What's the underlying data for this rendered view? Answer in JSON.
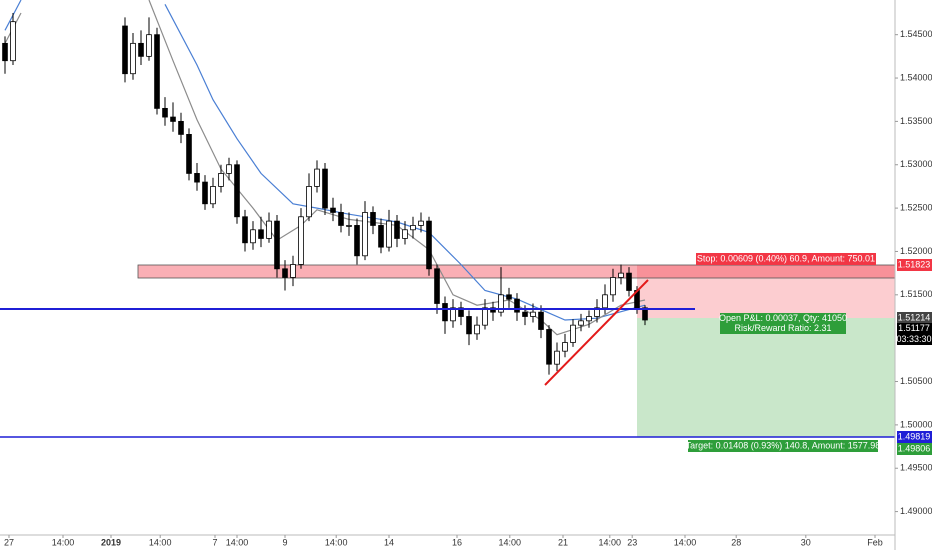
{
  "chart_data": {
    "type": "candlestick",
    "xlim": [
      -0.625,
      111.25
    ],
    "ylim": [
      1.4873,
      1.549
    ],
    "yticks": [
      {
        "value": 1.545,
        "label": "1.54500"
      },
      {
        "value": 1.54,
        "label": "1.54000"
      },
      {
        "value": 1.535,
        "label": "1.53500"
      },
      {
        "value": 1.53,
        "label": "1.53000"
      },
      {
        "value": 1.525,
        "label": "1.52500"
      },
      {
        "value": 1.52,
        "label": "1.52000"
      },
      {
        "value": 1.515,
        "label": "1.51500"
      },
      {
        "value": 1.505,
        "label": "1.50500"
      },
      {
        "value": 1.5,
        "label": "1.50000"
      },
      {
        "value": 1.495,
        "label": "1.49500"
      },
      {
        "value": 1.49,
        "label": "1.49000"
      }
    ],
    "xticks": [
      {
        "value": 0.5,
        "label": "27"
      },
      {
        "value": 7.25,
        "label": "14:00"
      },
      {
        "value": 13.25,
        "label": "2019"
      },
      {
        "value": 19.4,
        "label": "14:00"
      },
      {
        "value": 26.25,
        "label": "7"
      },
      {
        "value": 29,
        "label": "14:00"
      },
      {
        "value": 35,
        "label": "9"
      },
      {
        "value": 41.4,
        "label": "14:00"
      },
      {
        "value": 48,
        "label": "14"
      },
      {
        "value": 56.5,
        "label": "16"
      },
      {
        "value": 63.1,
        "label": "14:00"
      },
      {
        "value": 69.75,
        "label": "21"
      },
      {
        "value": 75.6,
        "label": "14:00"
      },
      {
        "value": 78.4,
        "label": "23"
      },
      {
        "value": 85,
        "label": "14:00"
      },
      {
        "value": 91.4,
        "label": "28"
      },
      {
        "value": 100.1,
        "label": "30"
      },
      {
        "value": 108.75,
        "label": "Feb"
      }
    ],
    "up_color": "#ffffff",
    "down_color": "#000000",
    "x": [
      0,
      1,
      15,
      16,
      17,
      18,
      19,
      20,
      21,
      22,
      23,
      24,
      25,
      26,
      27,
      28,
      29,
      30,
      31,
      32,
      33,
      34,
      35,
      36,
      37,
      38,
      39,
      40,
      41,
      42,
      43,
      44,
      45,
      46,
      47,
      48,
      49,
      50,
      51,
      52,
      53,
      54,
      55,
      56,
      57,
      58,
      59,
      60,
      61,
      62,
      63,
      64,
      65,
      66,
      67,
      68,
      69,
      70,
      71,
      72,
      73,
      74,
      75,
      76,
      77,
      78,
      79,
      80
    ],
    "open": [
      1.544,
      1.542,
      1.546,
      1.5405,
      1.544,
      1.5425,
      1.545,
      1.5365,
      1.5355,
      1.535,
      1.5335,
      1.529,
      1.528,
      1.5255,
      1.5275,
      1.529,
      1.53,
      1.524,
      1.521,
      1.5225,
      1.5215,
      1.5235,
      1.518,
      1.517,
      1.5185,
      1.524,
      1.5275,
      1.5295,
      1.525,
      1.5245,
      1.523,
      1.523,
      1.5195,
      1.5245,
      1.523,
      1.5205,
      1.5235,
      1.5215,
      1.5225,
      1.523,
      1.5235,
      1.518,
      1.514,
      1.512,
      1.5135,
      1.5125,
      1.5105,
      1.5115,
      1.5135,
      1.513,
      1.515,
      1.5145,
      1.513,
      1.5125,
      1.513,
      1.511,
      1.507,
      1.5085,
      1.5095,
      1.5115,
      1.512,
      1.5125,
      1.5135,
      1.515,
      1.517,
      1.5175,
      1.5155,
      1.5135
    ],
    "high": [
      1.5448,
      1.5475,
      1.547,
      1.5452,
      1.5455,
      1.547,
      1.5458,
      1.5378,
      1.5372,
      1.536,
      1.5342,
      1.5302,
      1.5288,
      1.5285,
      1.53,
      1.5308,
      1.5305,
      1.5248,
      1.5235,
      1.524,
      1.5245,
      1.5242,
      1.519,
      1.5195,
      1.525,
      1.529,
      1.5305,
      1.5302,
      1.5262,
      1.5255,
      1.5245,
      1.5238,
      1.5258,
      1.5252,
      1.5238,
      1.5248,
      1.5242,
      1.5235,
      1.524,
      1.5245,
      1.524,
      1.5185,
      1.5148,
      1.5145,
      1.5142,
      1.5132,
      1.5125,
      1.5145,
      1.5142,
      1.5182,
      1.5158,
      1.5152,
      1.5138,
      1.514,
      1.5138,
      1.5115,
      1.5095,
      1.5105,
      1.5122,
      1.5128,
      1.5132,
      1.5145,
      1.5162,
      1.518,
      1.5185,
      1.5182,
      1.516,
      1.5138
    ],
    "low": [
      1.5405,
      1.5415,
      1.5395,
      1.5398,
      1.5415,
      1.542,
      1.5358,
      1.5345,
      1.5338,
      1.5325,
      1.5282,
      1.527,
      1.5248,
      1.525,
      1.5268,
      1.5282,
      1.5232,
      1.52,
      1.5202,
      1.5205,
      1.521,
      1.517,
      1.5155,
      1.516,
      1.518,
      1.5235,
      1.5268,
      1.5242,
      1.5235,
      1.5222,
      1.5218,
      1.5185,
      1.519,
      1.522,
      1.5198,
      1.52,
      1.5205,
      1.5208,
      1.5215,
      1.5222,
      1.5172,
      1.5128,
      1.5105,
      1.5112,
      1.5115,
      1.5092,
      1.5098,
      1.511,
      1.512,
      1.5125,
      1.5135,
      1.512,
      1.5115,
      1.5118,
      1.51,
      1.5058,
      1.5062,
      1.5078,
      1.509,
      1.5108,
      1.5112,
      1.5118,
      1.5128,
      1.5142,
      1.5162,
      1.5148,
      1.5128,
      1.5115
    ],
    "close": [
      1.542,
      1.5465,
      1.5405,
      1.544,
      1.5425,
      1.545,
      1.5365,
      1.5355,
      1.535,
      1.5335,
      1.529,
      1.528,
      1.5255,
      1.5275,
      1.529,
      1.53,
      1.524,
      1.521,
      1.5225,
      1.5215,
      1.5235,
      1.518,
      1.517,
      1.5185,
      1.524,
      1.5275,
      1.5295,
      1.525,
      1.5245,
      1.523,
      1.523,
      1.5195,
      1.5245,
      1.523,
      1.5205,
      1.5235,
      1.5215,
      1.5225,
      1.523,
      1.5235,
      1.518,
      1.514,
      1.512,
      1.5135,
      1.5125,
      1.5105,
      1.5115,
      1.5135,
      1.513,
      1.515,
      1.5145,
      1.513,
      1.5125,
      1.513,
      1.511,
      1.507,
      1.5085,
      1.5095,
      1.5115,
      1.512,
      1.5125,
      1.5135,
      1.515,
      1.517,
      1.5175,
      1.5155,
      1.5135,
      1.5121
    ],
    "lines": [
      {
        "color": "#4a7fd4",
        "x": [
          0,
          2,
          10,
          20,
          24,
          26,
          29,
          32,
          36,
          39,
          43,
          49,
          53,
          57,
          60,
          64,
          67,
          70,
          74,
          80
        ],
        "values": [
          1.5455,
          1.549,
          null,
          1.5485,
          1.5415,
          1.5375,
          1.533,
          1.529,
          1.5255,
          1.525,
          1.5243,
          1.5234,
          1.5222,
          1.5185,
          1.5155,
          1.5145,
          1.5133,
          1.5121,
          1.5123,
          1.5138
        ]
      },
      {
        "color": "#8c8c8c",
        "x": [
          0,
          2,
          10,
          18,
          21,
          24,
          27,
          31,
          34,
          37,
          39,
          43,
          49,
          53,
          56,
          59,
          63,
          67,
          69,
          73,
          77,
          80
        ],
        "values": [
          1.544,
          1.5475,
          null,
          1.549,
          1.542,
          1.5352,
          1.5295,
          1.525,
          1.5213,
          1.523,
          1.5248,
          1.5237,
          1.523,
          1.5202,
          1.515,
          1.5138,
          1.5144,
          1.5121,
          1.5104,
          1.5116,
          1.5138,
          1.5144
        ]
      }
    ],
    "annotations": {
      "stop": "Stop: 0.00609 (0.40%) 60.9, Amount: 750.01",
      "pnl": "Open P&L: 0.00037, Qty: 41050",
      "ratio": "Risk/Reward Ratio: 2.31",
      "target": "Target: 0.01408 (0.93%) 140.8, Amount: 1577.98"
    },
    "price_tags": [
      1.51823,
      1.51214,
      1.51177,
      1.49819,
      1.49806
    ],
    "countdown": "03:33:30"
  }
}
